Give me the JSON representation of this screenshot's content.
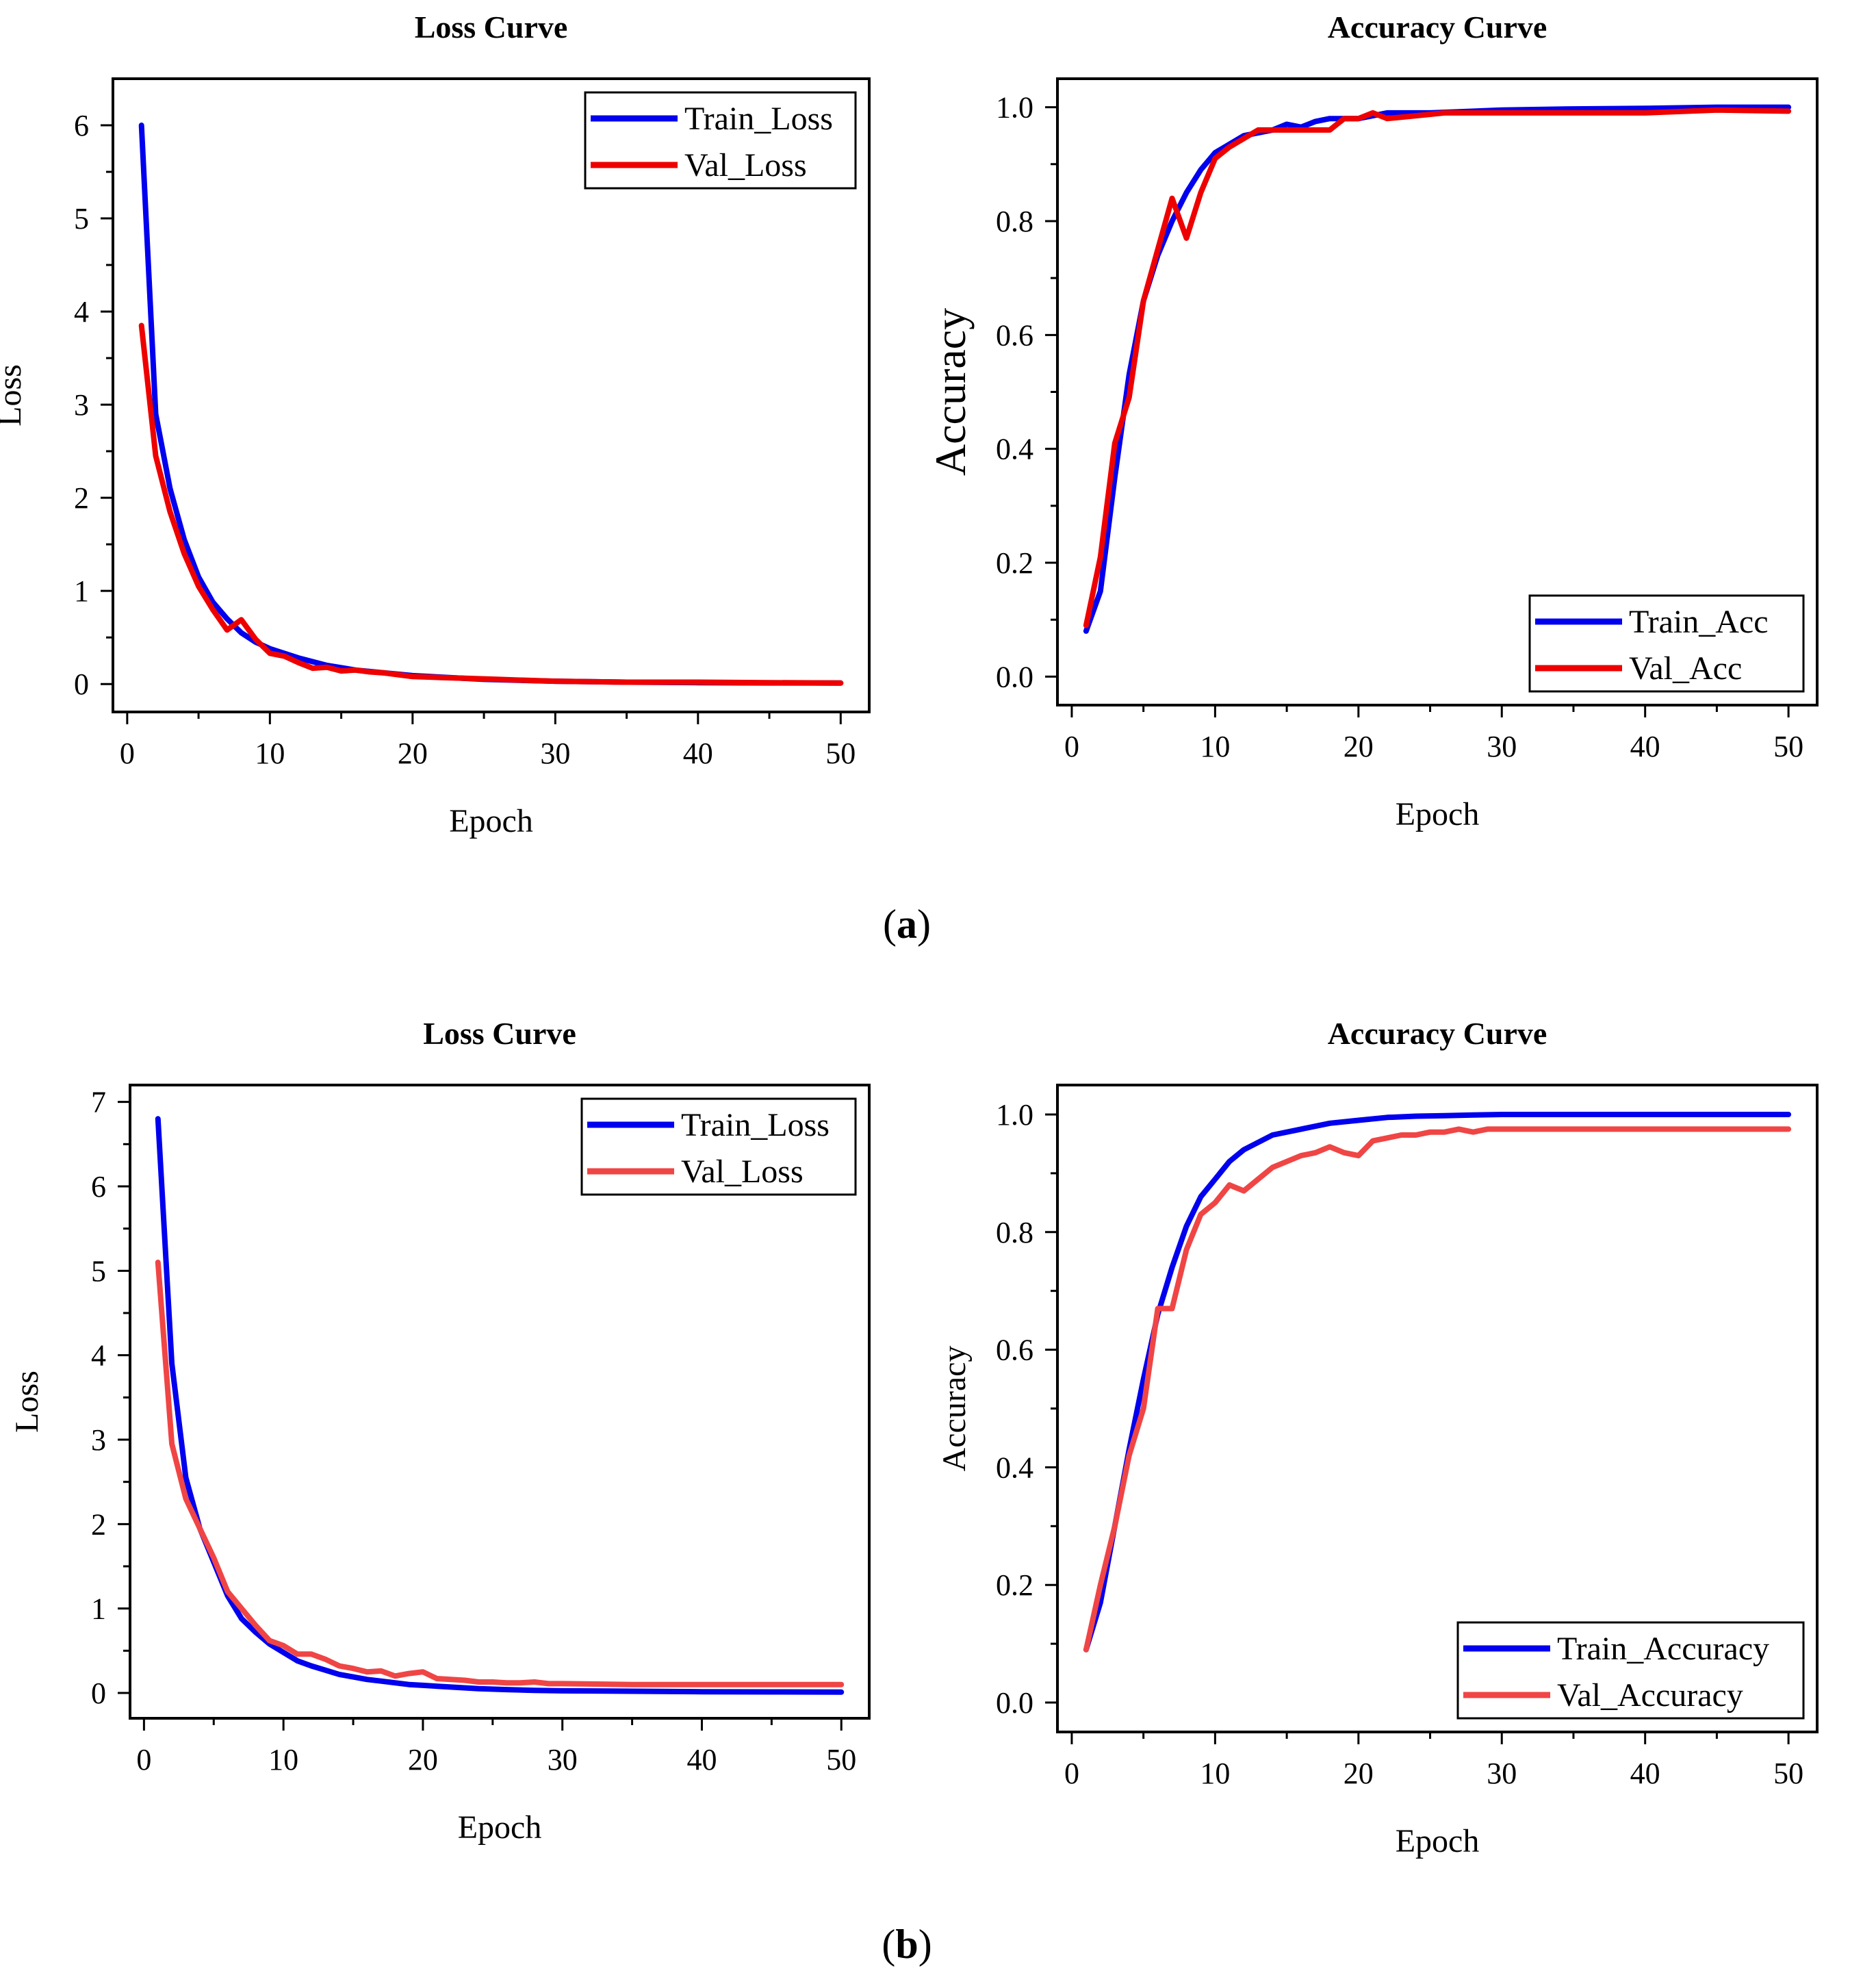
{
  "figure": {
    "panel_labels": [
      {
        "open": "(",
        "letter": "a",
        "close": ")"
      },
      {
        "open": "(",
        "letter": "b",
        "close": ")"
      }
    ]
  },
  "colors": {
    "blue": "#0000ee",
    "red": "#ee0000",
    "lightred": "#f04545",
    "axis": "#000000"
  },
  "chart_data": [
    {
      "type": "line",
      "title": "Loss Curve",
      "xlabel": "Epoch",
      "ylabel": "Loss",
      "xlim": [
        -1,
        52
      ],
      "ylim": [
        -0.3,
        6.5
      ],
      "xticks": [
        0,
        10,
        20,
        30,
        40,
        50
      ],
      "xtick_labels": [
        "0",
        "10",
        "20",
        "30",
        "40",
        "50"
      ],
      "yticks": [
        0,
        1,
        2,
        3,
        4,
        5,
        6
      ],
      "ytick_labels": [
        "0",
        "1",
        "2",
        "3",
        "4",
        "5",
        "6"
      ],
      "legend_position": "top-right",
      "series": [
        {
          "name": "Train_Loss",
          "color": "#0000ee",
          "x": [
            1,
            2,
            3,
            4,
            5,
            6,
            7,
            8,
            9,
            10,
            12,
            14,
            16,
            18,
            20,
            25,
            30,
            35,
            40,
            45,
            50
          ],
          "y": [
            6.0,
            2.9,
            2.1,
            1.55,
            1.15,
            0.88,
            0.7,
            0.55,
            0.45,
            0.38,
            0.28,
            0.2,
            0.15,
            0.12,
            0.09,
            0.05,
            0.03,
            0.02,
            0.015,
            0.012,
            0.01
          ]
        },
        {
          "name": "Val_Loss",
          "color": "#ee0000",
          "x": [
            1,
            2,
            3,
            4,
            5,
            6,
            7,
            8,
            9,
            10,
            11,
            12,
            13,
            14,
            15,
            16,
            17,
            18,
            19,
            20,
            22,
            24,
            26,
            28,
            30,
            35,
            40,
            45,
            50
          ],
          "y": [
            3.85,
            2.45,
            1.85,
            1.4,
            1.05,
            0.8,
            0.58,
            0.69,
            0.48,
            0.33,
            0.3,
            0.23,
            0.17,
            0.18,
            0.14,
            0.15,
            0.13,
            0.12,
            0.1,
            0.08,
            0.07,
            0.06,
            0.05,
            0.04,
            0.03,
            0.02,
            0.02,
            0.015,
            0.01
          ]
        }
      ]
    },
    {
      "type": "line",
      "title": "Accuracy Curve",
      "xlabel": "Epoch",
      "ylabel": "Accuracy",
      "xlim": [
        -1,
        52
      ],
      "ylim": [
        -0.05,
        1.05
      ],
      "xticks": [
        0,
        10,
        20,
        30,
        40,
        50
      ],
      "xtick_labels": [
        "0",
        "10",
        "20",
        "30",
        "40",
        "50"
      ],
      "yticks": [
        0,
        0.2,
        0.4,
        0.6,
        0.8,
        1.0
      ],
      "ytick_labels": [
        "0.0",
        "0.2",
        "0.4",
        "0.6",
        "0.8",
        "1.0"
      ],
      "legend_position": "bottom-right",
      "series": [
        {
          "name": "Train_Acc",
          "color": "#0000ee",
          "x": [
            1,
            2,
            3,
            4,
            5,
            6,
            7,
            8,
            9,
            10,
            12,
            14,
            15,
            16,
            17,
            18,
            20,
            22,
            25,
            30,
            35,
            40,
            45,
            50
          ],
          "y": [
            0.08,
            0.15,
            0.35,
            0.53,
            0.66,
            0.74,
            0.8,
            0.85,
            0.89,
            0.92,
            0.95,
            0.96,
            0.97,
            0.965,
            0.975,
            0.98,
            0.98,
            0.99,
            0.99,
            0.995,
            0.997,
            0.998,
            1.0,
            1.0
          ]
        },
        {
          "name": "Val_Acc",
          "color": "#ee0000",
          "x": [
            1,
            2,
            3,
            4,
            5,
            6,
            7,
            8,
            9,
            10,
            11,
            12,
            13,
            14,
            15,
            16,
            17,
            18,
            19,
            20,
            21,
            22,
            24,
            26,
            28,
            30,
            35,
            40,
            45,
            50
          ],
          "y": [
            0.09,
            0.21,
            0.41,
            0.49,
            0.66,
            0.75,
            0.84,
            0.77,
            0.85,
            0.91,
            0.93,
            0.945,
            0.96,
            0.96,
            0.96,
            0.96,
            0.96,
            0.96,
            0.98,
            0.98,
            0.99,
            0.98,
            0.985,
            0.99,
            0.99,
            0.99,
            0.99,
            0.99,
            0.995,
            0.993
          ]
        }
      ]
    },
    {
      "type": "line",
      "title": "Loss Curve",
      "xlabel": "Epoch",
      "ylabel": "Loss",
      "xlim": [
        -1,
        52
      ],
      "ylim": [
        -0.3,
        7.2
      ],
      "xticks": [
        0,
        10,
        20,
        30,
        40,
        50
      ],
      "xtick_labels": [
        "0",
        "10",
        "20",
        "30",
        "40",
        "50"
      ],
      "yticks": [
        0,
        1,
        2,
        3,
        4,
        5,
        6,
        7
      ],
      "ytick_labels": [
        "0",
        "1",
        "2",
        "3",
        "4",
        "5",
        "6",
        "7"
      ],
      "legend_position": "top-right",
      "series": [
        {
          "name": "Train_Loss",
          "color": "#0000ee",
          "x": [
            1,
            2,
            3,
            4,
            5,
            6,
            7,
            8,
            9,
            10,
            11,
            12,
            13,
            14,
            15,
            16,
            17,
            18,
            19,
            20,
            22,
            24,
            26,
            28,
            30,
            35,
            40,
            45,
            50
          ],
          "y": [
            6.8,
            3.9,
            2.55,
            1.95,
            1.55,
            1.15,
            0.88,
            0.72,
            0.58,
            0.48,
            0.38,
            0.32,
            0.27,
            0.22,
            0.19,
            0.16,
            0.14,
            0.12,
            0.1,
            0.09,
            0.07,
            0.05,
            0.04,
            0.03,
            0.025,
            0.02,
            0.015,
            0.012,
            0.01
          ]
        },
        {
          "name": "Val_Loss",
          "color": "#f04545",
          "x": [
            1,
            2,
            3,
            4,
            5,
            6,
            7,
            8,
            9,
            10,
            11,
            12,
            13,
            14,
            15,
            16,
            17,
            18,
            19,
            20,
            21,
            22,
            23,
            24,
            25,
            26,
            27,
            28,
            29,
            30,
            35,
            40,
            45,
            50
          ],
          "y": [
            5.1,
            2.95,
            2.3,
            1.95,
            1.6,
            1.2,
            1.0,
            0.8,
            0.62,
            0.56,
            0.46,
            0.46,
            0.4,
            0.32,
            0.29,
            0.25,
            0.26,
            0.2,
            0.23,
            0.25,
            0.17,
            0.16,
            0.15,
            0.13,
            0.13,
            0.12,
            0.12,
            0.13,
            0.11,
            0.11,
            0.1,
            0.1,
            0.1,
            0.1
          ]
        }
      ]
    },
    {
      "type": "line",
      "title": "Accuracy Curve",
      "xlabel": "Epoch",
      "ylabel": "Accuracy",
      "xlim": [
        -1,
        52
      ],
      "ylim": [
        -0.05,
        1.05
      ],
      "xticks": [
        0,
        10,
        20,
        30,
        40,
        50
      ],
      "xtick_labels": [
        "0",
        "10",
        "20",
        "30",
        "40",
        "50"
      ],
      "yticks": [
        0,
        0.2,
        0.4,
        0.6,
        0.8,
        1.0
      ],
      "ytick_labels": [
        "0.0",
        "0.2",
        "0.4",
        "0.6",
        "0.8",
        "1.0"
      ],
      "legend_position": "bottom-right",
      "series": [
        {
          "name": "Train_Accuracy",
          "color": "#0000ee",
          "x": [
            1,
            2,
            3,
            4,
            5,
            6,
            7,
            8,
            9,
            10,
            11,
            12,
            14,
            16,
            18,
            20,
            22,
            24,
            26,
            28,
            30,
            35,
            40,
            45,
            50
          ],
          "y": [
            0.09,
            0.17,
            0.3,
            0.43,
            0.55,
            0.66,
            0.74,
            0.81,
            0.86,
            0.89,
            0.92,
            0.94,
            0.965,
            0.975,
            0.985,
            0.99,
            0.995,
            0.997,
            0.998,
            0.999,
            1.0,
            1.0,
            1.0,
            1.0,
            1.0
          ]
        },
        {
          "name": "Val_Accuracy",
          "color": "#f04545",
          "x": [
            1,
            2,
            3,
            4,
            5,
            6,
            7,
            8,
            9,
            10,
            11,
            12,
            13,
            14,
            15,
            16,
            17,
            18,
            19,
            20,
            21,
            22,
            23,
            24,
            25,
            26,
            27,
            28,
            29,
            30,
            35,
            40,
            45,
            50
          ],
          "y": [
            0.09,
            0.2,
            0.3,
            0.42,
            0.5,
            0.67,
            0.67,
            0.77,
            0.83,
            0.85,
            0.88,
            0.87,
            0.89,
            0.91,
            0.92,
            0.93,
            0.935,
            0.945,
            0.935,
            0.93,
            0.955,
            0.96,
            0.965,
            0.965,
            0.97,
            0.97,
            0.975,
            0.97,
            0.975,
            0.975,
            0.975,
            0.975,
            0.975,
            0.975
          ]
        }
      ]
    }
  ]
}
